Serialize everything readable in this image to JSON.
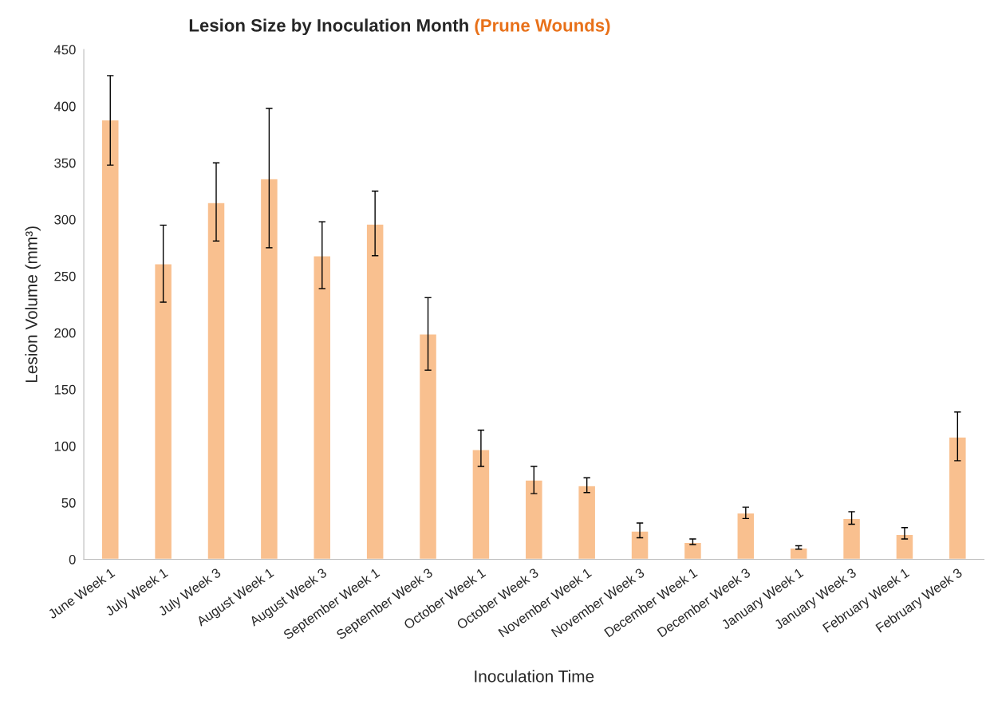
{
  "chart_data": {
    "type": "bar",
    "title": "Lesion Size by Inoculation Month",
    "subtitle": "(Prune Wounds)",
    "xlabel": "Inoculation Time",
    "ylabel": "Lesion Volume (mm³)",
    "categories": [
      "June Week 1",
      "July Week 1",
      "July Week 3",
      "August Week 1",
      "August Week 3",
      "September Week 1",
      "September Week 3",
      "October Week 1",
      "October Week 3",
      "November Week 1",
      "November Week 3",
      "December Week 1",
      "December Week 3",
      "January Week 1",
      "January Week 3",
      "February Week 1",
      "February Week 3"
    ],
    "series": [
      {
        "color": "#f9c08f",
        "values": [
          388,
          261,
          315,
          336,
          268,
          296,
          199,
          97,
          70,
          65,
          25,
          15,
          41,
          10,
          36,
          22,
          108
        ],
        "errors": [
          [
            348,
            427
          ],
          [
            227,
            295
          ],
          [
            281,
            350
          ],
          [
            275,
            398
          ],
          [
            239,
            298
          ],
          [
            268,
            325
          ],
          [
            167,
            231
          ],
          [
            82,
            114
          ],
          [
            58,
            82
          ],
          [
            59,
            72
          ],
          [
            19,
            32
          ],
          [
            13,
            18
          ],
          [
            36,
            46
          ],
          [
            9,
            12
          ],
          [
            31,
            42
          ],
          [
            18,
            28
          ],
          [
            87,
            130
          ]
        ]
      }
    ],
    "ylim": [
      0,
      450
    ],
    "yticks": [
      0,
      50,
      100,
      150,
      200,
      250,
      300,
      350,
      400,
      450
    ],
    "grid": false,
    "legend": false
  }
}
